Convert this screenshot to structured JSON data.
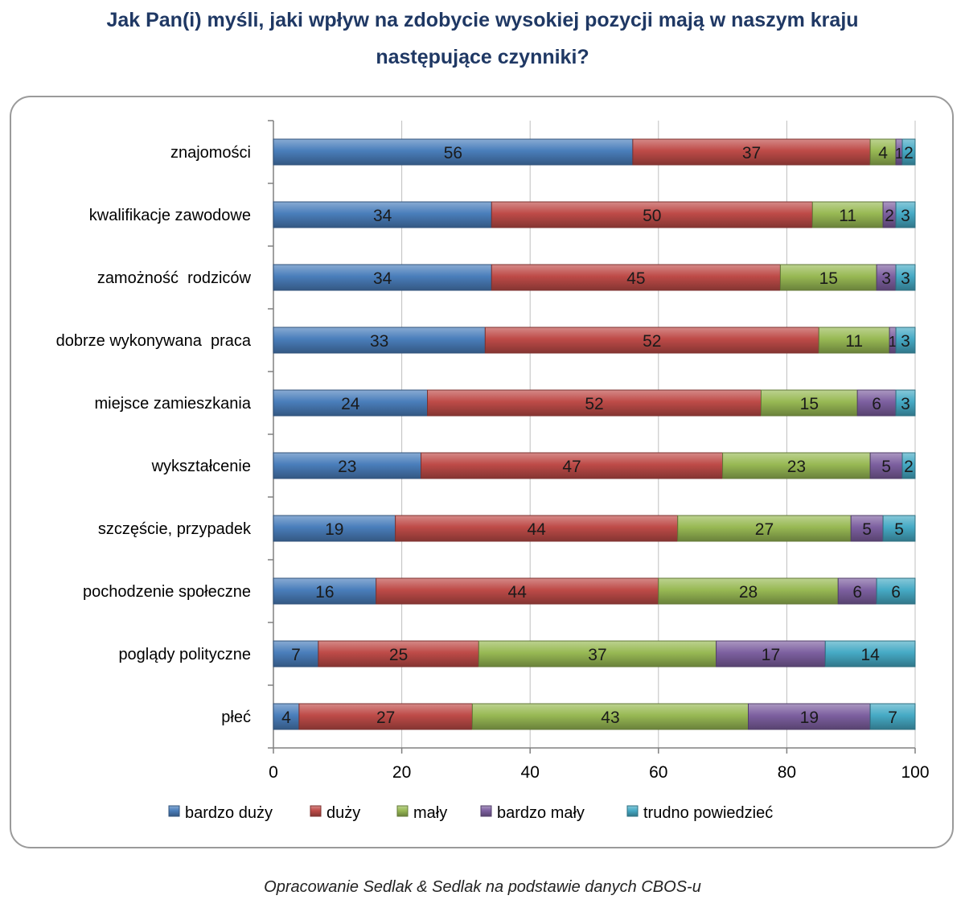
{
  "title": "Jak Pan(i) myśli, jaki wpływ na zdobycie wysokiej pozycji mają w naszym kraju następujące czynniki?",
  "source": "Opracowanie Sedlak & Sedlak na podstawie danych CBOS-u",
  "chart_data": {
    "type": "bar",
    "orientation": "horizontal",
    "stacked": true,
    "categories": [
      "znajomości",
      "kwalifikacje zawodowe",
      "zamożność  rodziców",
      "dobrze wykonywana  praca",
      "miejsce zamieszkania",
      "wykształcenie",
      "szczęście, przypadek",
      "pochodzenie społeczne",
      "poglądy polityczne",
      "płeć"
    ],
    "series": [
      {
        "name": "bardzo duży",
        "color": "#4a7ebb",
        "values": [
          56,
          34,
          34,
          33,
          24,
          23,
          19,
          16,
          7,
          4
        ]
      },
      {
        "name": "duży",
        "color": "#be4b48",
        "values": [
          37,
          50,
          45,
          52,
          52,
          47,
          44,
          44,
          25,
          27
        ]
      },
      {
        "name": "mały",
        "color": "#98b954",
        "values": [
          4,
          11,
          15,
          11,
          15,
          23,
          27,
          28,
          37,
          43
        ]
      },
      {
        "name": "bardzo mały",
        "color": "#7d60a0",
        "values": [
          1,
          2,
          3,
          1,
          6,
          5,
          5,
          6,
          17,
          19
        ]
      },
      {
        "name": "trudno powiedzieć",
        "color": "#46aac5",
        "values": [
          2,
          3,
          3,
          3,
          3,
          2,
          5,
          6,
          14,
          7
        ]
      }
    ],
    "xlim": [
      0,
      100
    ],
    "xticks": [
      0,
      20,
      40,
      60,
      80,
      100
    ],
    "grid": true,
    "legend": "bottom"
  }
}
